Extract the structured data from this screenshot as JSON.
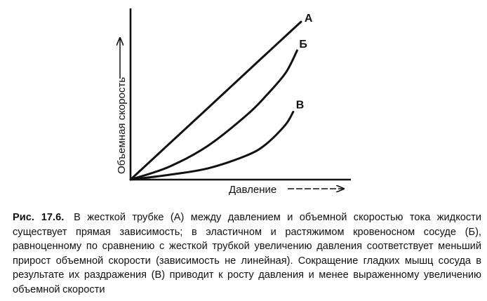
{
  "chart_data": {
    "type": "line",
    "xlabel": "Давление",
    "ylabel": "Объемная скорость",
    "xlim": [
      0,
      1
    ],
    "ylim": [
      0,
      1
    ],
    "grid": false,
    "series": [
      {
        "name": "А",
        "x": [
          0,
          0.2,
          0.4,
          0.6,
          0.8,
          0.88
        ],
        "y": [
          0,
          0.222,
          0.444,
          0.667,
          0.889,
          0.978
        ]
      },
      {
        "name": "Б",
        "x": [
          0,
          0.2,
          0.4,
          0.6,
          0.7,
          0.8,
          0.86
        ],
        "y": [
          0,
          0.08,
          0.21,
          0.4,
          0.52,
          0.66,
          0.8
        ]
      },
      {
        "name": "В",
        "x": [
          0,
          0.2,
          0.4,
          0.6,
          0.7,
          0.8,
          0.84
        ],
        "y": [
          0,
          0.03,
          0.07,
          0.15,
          0.22,
          0.34,
          0.42
        ]
      }
    ]
  },
  "caption": {
    "label": "Рис. 17.6.",
    "text": "В жесткой трубке (А) между давлением и объемной скоростью тока жидкости существует прямая зависимость; в эластичном и растяжимом кровеносном сосуде (Б), равноценному по сравнению с жесткой трубкой увеличению давления соответствует меньший прирост объемной скорости (зависимость не линейная). Сокращение гладких мышц сосуда в результате их раздражения (В) приводит к росту давления и менее выраженному увеличению объемной скорости"
  }
}
